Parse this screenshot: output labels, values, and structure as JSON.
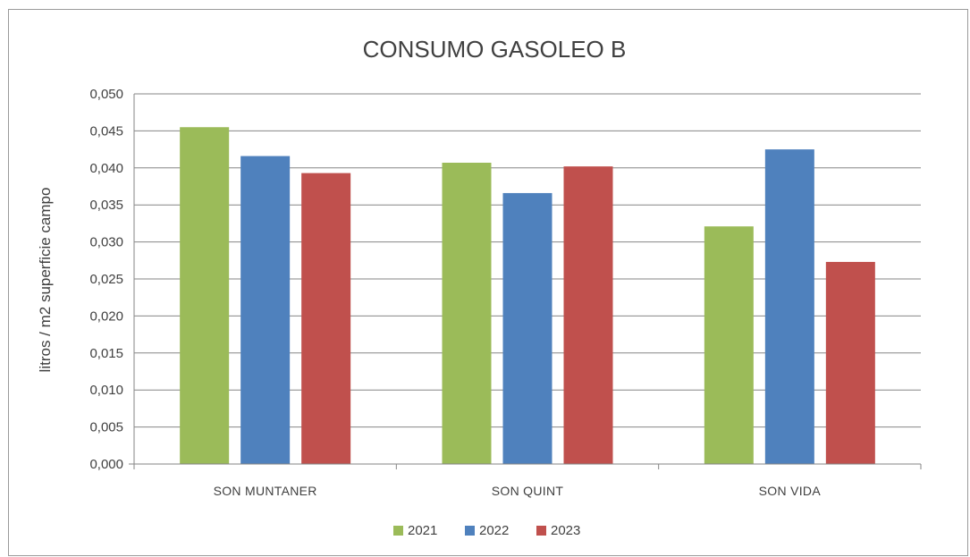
{
  "chart_data": {
    "type": "bar",
    "title": "CONSUMO GASOLEO B",
    "xlabel": "",
    "ylabel": "litros / m2 superficie campo",
    "categories": [
      "SON MUNTANER",
      "SON QUINT",
      "SON VIDA"
    ],
    "series": [
      {
        "name": "2021",
        "color": "#9bbb59",
        "values": [
          0.0455,
          0.0407,
          0.0321
        ]
      },
      {
        "name": "2022",
        "color": "#4f81bd",
        "values": [
          0.0416,
          0.0366,
          0.0425
        ]
      },
      {
        "name": "2023",
        "color": "#c0504d",
        "values": [
          0.0393,
          0.0402,
          0.0273
        ]
      }
    ],
    "ylim": [
      0,
      0.05
    ],
    "yticks": [
      "0,000",
      "0,005",
      "0,010",
      "0,015",
      "0,020",
      "0,025",
      "0,030",
      "0,035",
      "0,040",
      "0,045",
      "0,050"
    ],
    "grid": true,
    "legend_position": "bottom"
  }
}
